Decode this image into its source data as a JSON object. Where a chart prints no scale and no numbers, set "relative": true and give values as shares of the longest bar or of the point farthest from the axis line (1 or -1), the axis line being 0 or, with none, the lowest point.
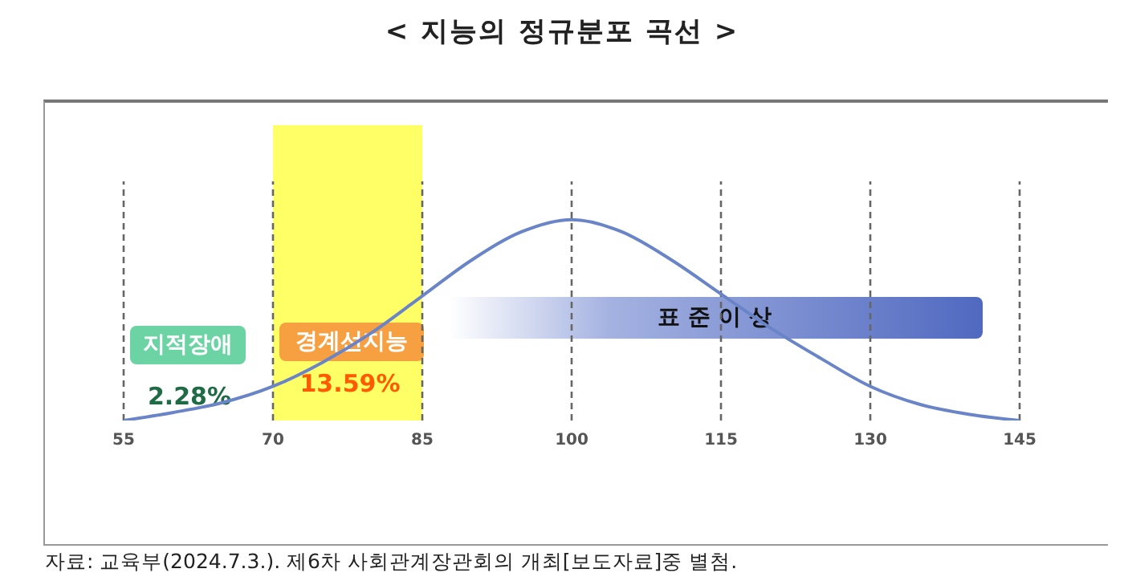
{
  "chart_data": {
    "type": "line",
    "title": "< 지능의 정규분포 곡선 >",
    "relative": true,
    "x": [
      55,
      60,
      65,
      70,
      75,
      80,
      85,
      90,
      95,
      100,
      105,
      110,
      115,
      120,
      125,
      130,
      135,
      140,
      145
    ],
    "series": [
      {
        "color": "#6a84c8",
        "values": [
          0,
          0.04,
          0.09,
          0.17,
          0.29,
          0.44,
          0.62,
          0.8,
          0.94,
          1,
          0.94,
          0.8,
          0.63,
          0.46,
          0.31,
          0.17,
          0.08,
          0.03,
          0
        ]
      }
    ],
    "xlim": [
      55,
      145
    ],
    "xticks": [
      55,
      70,
      85,
      100,
      115,
      130,
      145
    ],
    "grid": "x",
    "bands": [
      {
        "axis": "x",
        "from": 70,
        "to": 85,
        "color": "#ffff66"
      }
    ],
    "annotations": [
      "지적장애",
      "2.28%",
      "경계선지능",
      "13.59%",
      "표 준 이 상",
      "자료: 교육부(2024.7.3.). 제6차 사회관계장관회의 개최[보도자료]중 별첨."
    ]
  }
}
